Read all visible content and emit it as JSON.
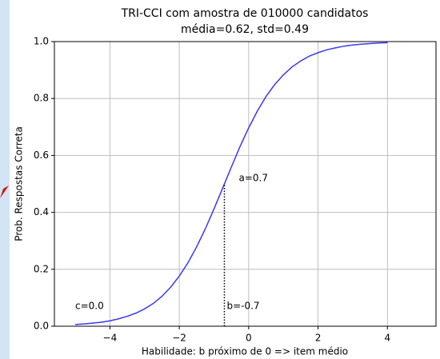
{
  "chart_data": {
    "type": "line",
    "title": "TRI-CCI com amostra de 010000 candidatos",
    "subtitle": "média=0.62, std=0.49",
    "x_label": "Habilidade: b próximo de 0 => item médio",
    "y_label": "Prob. Respostas Correta",
    "annotations": [
      "a=0.7",
      "b=-0.7",
      "c=0.0"
    ],
    "reference_line": {
      "x": -0.7,
      "y": [
        0,
        0.5
      ]
    },
    "x": [
      -5,
      -4.75,
      -4.5,
      -4.25,
      -4,
      -3.75,
      -3.5,
      -3.25,
      -3,
      -2.75,
      -2.5,
      -2.25,
      -2,
      -1.75,
      -1.5,
      -1.25,
      -1,
      -0.75,
      -0.5,
      -0.25,
      0,
      0.25,
      0.5,
      0.75,
      1,
      1.25,
      1.5,
      1.75,
      2,
      2.25,
      2.5,
      2.75,
      3,
      3.25,
      3.5,
      3.75,
      4
    ],
    "series": [
      {
        "name": "CCI",
        "color": "#3a3aef",
        "values": [
          0.006,
          0.008,
          0.011,
          0.014,
          0.019,
          0.026,
          0.035,
          0.046,
          0.061,
          0.08,
          0.105,
          0.137,
          0.176,
          0.223,
          0.279,
          0.342,
          0.412,
          0.485,
          0.559,
          0.631,
          0.697,
          0.756,
          0.807,
          0.849,
          0.883,
          0.911,
          0.932,
          0.949,
          0.961,
          0.971,
          0.978,
          0.984,
          0.988,
          0.991,
          0.993,
          0.995,
          0.996
        ]
      }
    ],
    "xlim": [
      -5.6,
      5.4
    ],
    "ylim": [
      0,
      1
    ],
    "xticks": [
      {
        "value": -4,
        "label": "−4"
      },
      {
        "value": -2,
        "label": "−2"
      },
      0,
      2,
      4
    ],
    "yticks": [
      {
        "value": 0,
        "label": "0.0"
      },
      0.2,
      0.4,
      0.6,
      0.8,
      {
        "value": 1,
        "label": "1.0"
      }
    ],
    "grid": true
  }
}
